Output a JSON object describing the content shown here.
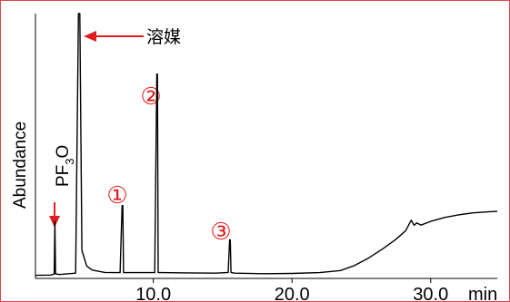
{
  "chart_data": {
    "type": "line",
    "title": "",
    "ylabel": "Abundance",
    "xlabel": "min",
    "xlim": [
      1.5,
      34.8
    ],
    "ylim": [
      0,
      100
    ],
    "x_ticks": [
      {
        "value": 10,
        "label": "10.0"
      },
      {
        "value": 20,
        "label": "20.0"
      },
      {
        "value": 30,
        "label": "30.0"
      }
    ],
    "grid": false,
    "series": [
      {
        "x": [
          1.5,
          2.6,
          2.85,
          2.9,
          2.95,
          3.25,
          4.4,
          4.6,
          4.65,
          4.7,
          4.85,
          5.2,
          5.6,
          6.5,
          7.6,
          7.75,
          7.8,
          7.85,
          8.1,
          10.1,
          10.25,
          10.3,
          10.35,
          10.6,
          12.5,
          14.5,
          15.4,
          15.5,
          15.55,
          15.6,
          15.85,
          18,
          20,
          22,
          23.5,
          24.5,
          25.5,
          26.5,
          27.5,
          28.2,
          28.6,
          28.8,
          29.0,
          29.3,
          30,
          31,
          32,
          33,
          34,
          34.8
        ],
        "y": [
          0.5,
          0.6,
          1,
          21,
          1,
          0.8,
          1.3,
          100,
          100,
          100,
          10,
          4,
          2.5,
          1.6,
          1.5,
          27,
          27,
          1.5,
          1.5,
          1.5,
          77,
          77,
          1.5,
          1.5,
          1.4,
          1.3,
          1.6,
          14,
          14,
          1.6,
          1.3,
          1.1,
          1.2,
          1.5,
          2.3,
          4.2,
          7,
          10.4,
          14.2,
          17.5,
          21.5,
          19.5,
          20.4,
          19.6,
          21,
          22.5,
          23.5,
          24.2,
          24.6,
          24.8
        ]
      }
    ],
    "peak_labels": [
      {
        "text": "①",
        "x": 7.8
      },
      {
        "text": "②",
        "x": 10.3
      },
      {
        "text": "③",
        "x": 15.55
      }
    ],
    "annotations": [
      {
        "text": "溶媒",
        "target_x": 4.65
      },
      {
        "text": "PF3O",
        "target_x": 2.9
      }
    ]
  },
  "colors": {
    "trace": "#000000",
    "annotation": "#e01e22",
    "frame": "#e0474c"
  }
}
